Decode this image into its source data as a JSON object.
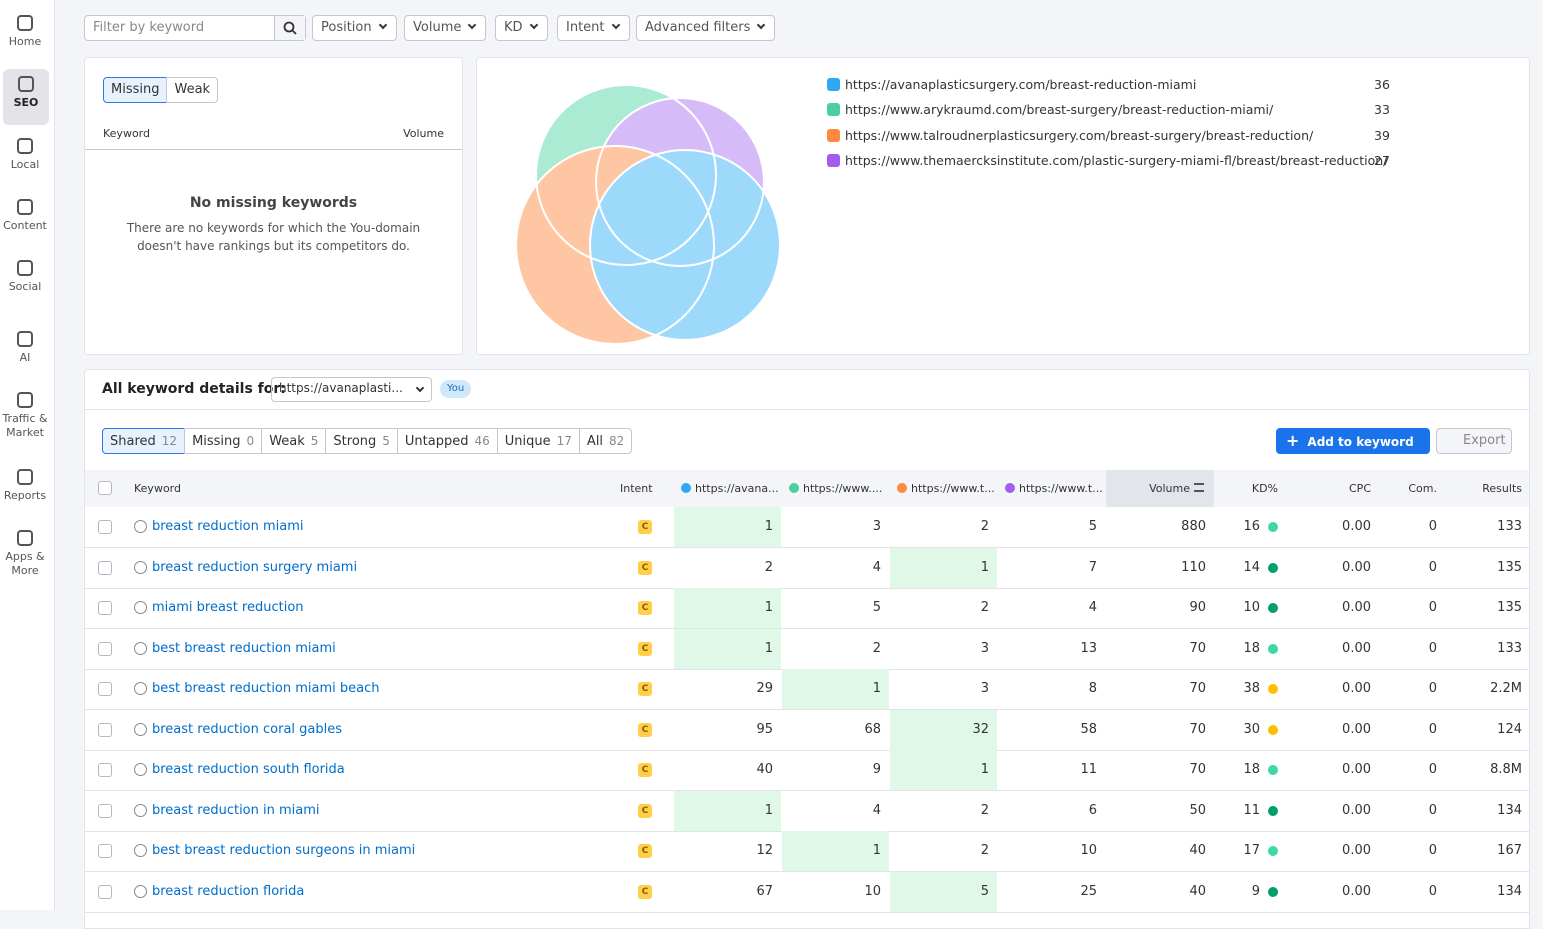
{
  "sidebar": [
    {
      "label": "Home"
    },
    {
      "label": "SEO"
    },
    {
      "label": "Local"
    },
    {
      "label": "Content"
    },
    {
      "label": "Social"
    },
    {
      "label": "AI"
    },
    {
      "label": "Traffic & Market"
    },
    {
      "label": "Reports"
    },
    {
      "label": "Apps & More"
    }
  ],
  "filters": {
    "placeholder": "Filter by keyword",
    "buttons": [
      "Position",
      "Volume",
      "KD",
      "Intent",
      "Advanced filters"
    ]
  },
  "missing_panel": {
    "tabs": [
      "Missing",
      "Weak"
    ],
    "columns": [
      "Keyword",
      "Volume"
    ],
    "empty_title": "No missing keywords",
    "empty_text": "There are no keywords for which the You-domain doesn't have rankings but its competitors do."
  },
  "venn": {
    "domains": [
      {
        "url": "https://avanaplasticsurgery.com/breast-reduction-miami",
        "count": 36,
        "color": "#2ea8f2"
      },
      {
        "url": "https://www.arykraumd.com/breast-surgery/breast-reduction-miami/",
        "count": 33,
        "color": "#4ccf9e"
      },
      {
        "url": "https://www.talroudnerplasticsurgery.com/breast-surgery/breast-reduction/",
        "count": 39,
        "color": "#ff8a3d"
      },
      {
        "url": "https://www.themaercksinstitute.com/plastic-surgery-miami-fl/breast/breast-reduction/",
        "count": 27,
        "color": "#a35cf0"
      }
    ]
  },
  "details": {
    "title": "All keyword details for:",
    "select": "https://avanaplasti...",
    "badge": "You",
    "tabs": [
      {
        "label": "Shared",
        "count": 12
      },
      {
        "label": "Missing",
        "count": 0
      },
      {
        "label": "Weak",
        "count": 5
      },
      {
        "label": "Strong",
        "count": 5
      },
      {
        "label": "Untapped",
        "count": 46
      },
      {
        "label": "Unique",
        "count": 17
      },
      {
        "label": "All",
        "count": 82
      }
    ],
    "add_button": "Add to keyword list",
    "export_button": "Export"
  },
  "table": {
    "columns": {
      "keyword": "Keyword",
      "intent": "Intent",
      "domains": [
        "https://avana...",
        "https://www....",
        "https://www.t...",
        "https://www.t..."
      ],
      "volume": "Volume",
      "kd": "KD%",
      "cpc": "CPC",
      "com": "Com.",
      "results": "Results"
    },
    "rows": [
      {
        "keyword": "breast reduction miami",
        "intent": "C",
        "positions": [
          1,
          3,
          2,
          5
        ],
        "volume": 880,
        "kd": 16,
        "kd_color": "#3fd9a0",
        "cpc": "0.00",
        "com": 0,
        "results": 133
      },
      {
        "keyword": "breast reduction surgery miami",
        "intent": "C",
        "positions": [
          2,
          4,
          1,
          7
        ],
        "volume": 110,
        "kd": 14,
        "kd_color": "#009f6b",
        "cpc": "0.00",
        "com": 0,
        "results": 135
      },
      {
        "keyword": "miami breast reduction",
        "intent": "C",
        "positions": [
          1,
          5,
          2,
          4
        ],
        "volume": 90,
        "kd": 10,
        "kd_color": "#009f6b",
        "cpc": "0.00",
        "com": 0,
        "results": 135
      },
      {
        "keyword": "best breast reduction miami",
        "intent": "C",
        "positions": [
          1,
          2,
          3,
          13
        ],
        "volume": 70,
        "kd": 18,
        "kd_color": "#3fd9a0",
        "cpc": "0.00",
        "com": 0,
        "results": 133
      },
      {
        "keyword": "best breast reduction miami beach",
        "intent": "C",
        "positions": [
          29,
          1,
          3,
          8
        ],
        "volume": 70,
        "kd": 38,
        "kd_color": "#fdbf00",
        "cpc": "0.00",
        "com": 0,
        "results": "2.2M"
      },
      {
        "keyword": "breast reduction coral gables",
        "intent": "C",
        "positions": [
          95,
          68,
          32,
          58
        ],
        "volume": 70,
        "kd": 30,
        "kd_color": "#fdbf00",
        "cpc": "0.00",
        "com": 0,
        "results": 124
      },
      {
        "keyword": "breast reduction south florida",
        "intent": "C",
        "positions": [
          40,
          9,
          1,
          11
        ],
        "volume": 70,
        "kd": 18,
        "kd_color": "#3fd9a0",
        "cpc": "0.00",
        "com": 0,
        "results": "8.8M"
      },
      {
        "keyword": "breast reduction in miami",
        "intent": "C",
        "positions": [
          1,
          4,
          2,
          6
        ],
        "volume": 50,
        "kd": 11,
        "kd_color": "#009f6b",
        "cpc": "0.00",
        "com": 0,
        "results": 134
      },
      {
        "keyword": "best breast reduction surgeons in miami",
        "intent": "C",
        "positions": [
          12,
          1,
          2,
          10
        ],
        "volume": 40,
        "kd": 17,
        "kd_color": "#3fd9a0",
        "cpc": "0.00",
        "com": 0,
        "results": 167
      },
      {
        "keyword": "breast reduction florida",
        "intent": "C",
        "positions": [
          67,
          10,
          5,
          25
        ],
        "volume": 40,
        "kd": 9,
        "kd_color": "#009f6b",
        "cpc": "0.00",
        "com": 0,
        "results": 134
      }
    ]
  }
}
